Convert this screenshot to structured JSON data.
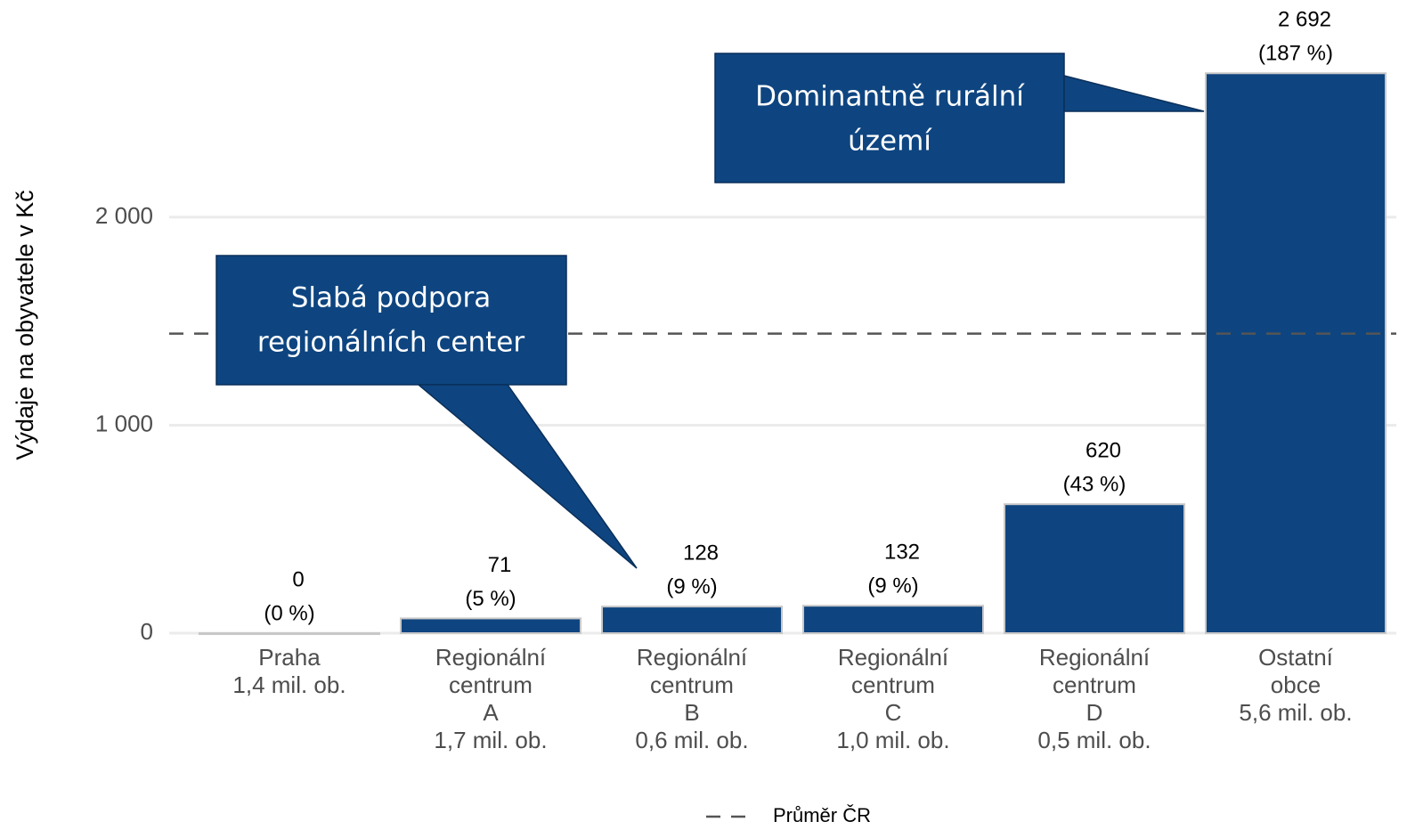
{
  "chart_data": {
    "type": "bar",
    "y_label": "Výdaje na obyvatele v Kč",
    "categories": [
      [
        "Praha",
        "1,4 mil. ob."
      ],
      [
        "Regionální",
        "centrum",
        "A",
        "1,7 mil. ob."
      ],
      [
        "Regionální",
        "centrum",
        "B",
        "0,6 mil. ob."
      ],
      [
        "Regionální",
        "centrum",
        "C",
        "1,0 mil. ob."
      ],
      [
        "Regionální",
        "centrum",
        "D",
        "0,5 mil. ob."
      ],
      [
        "Ostatní",
        "obce",
        "5,6 mil. ob."
      ]
    ],
    "values": [
      0,
      71,
      128,
      132,
      620,
      2692
    ],
    "value_labels": [
      "0",
      "71",
      "128",
      "132",
      "620",
      "2 692"
    ],
    "share_labels": [
      "(0 %)",
      "(5 %)",
      "(9 %)",
      "(9 %)",
      "(43 %)",
      "(187 %)"
    ],
    "color": "#0e4580",
    "ylim": [
      0,
      2950
    ],
    "yticks": [
      0,
      {
        "value": 1000,
        "label": "1 000"
      },
      {
        "value": 2000,
        "label": "2 000"
      }
    ],
    "grid": true,
    "reference_line": {
      "name": "Průměr ČR",
      "value": 1440
    },
    "legend": "bottom",
    "annotations": [
      {
        "lines": [
          "Dominantně rurální",
          "území"
        ]
      },
      {
        "lines": [
          "Slabá podpora",
          "regionálních center"
        ]
      }
    ]
  }
}
